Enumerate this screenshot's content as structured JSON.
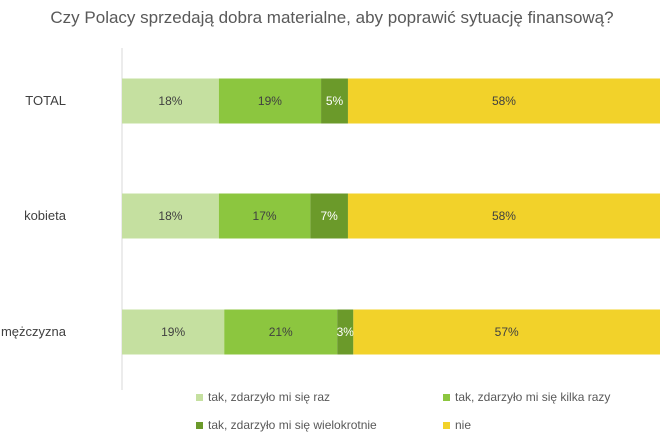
{
  "chart_data": {
    "type": "bar",
    "orientation": "horizontal",
    "stacked": true,
    "title": "Czy Polacy sprzedają dobra materialne, aby poprawić sytuację finansową?",
    "xlabel": "",
    "ylabel": "",
    "xlim": [
      0,
      100
    ],
    "grid": false,
    "legend_position": "bottom",
    "categories": [
      "TOTAL",
      "kobieta",
      "mężczyzna"
    ],
    "series": [
      {
        "name": "tak, zdarzyło mi się raz",
        "color": "#c5e0a0",
        "values": [
          18,
          18,
          19
        ],
        "labels": [
          "18%",
          "18%",
          "19%"
        ]
      },
      {
        "name": "tak, zdarzyło mi się kilka razy",
        "color": "#8cc63f",
        "values": [
          19,
          17,
          21
        ],
        "labels": [
          "19%",
          "17%",
          "21%"
        ]
      },
      {
        "name": "tak, zdarzyło mi się wielokrotnie",
        "color": "#6b9a2a",
        "values": [
          5,
          7,
          3
        ],
        "labels": [
          "5%",
          "7%",
          "3%"
        ]
      },
      {
        "name": "nie",
        "color": "#f2d22a",
        "values": [
          58,
          58,
          57
        ],
        "labels": [
          "58%",
          "58%",
          "57%"
        ]
      }
    ]
  }
}
